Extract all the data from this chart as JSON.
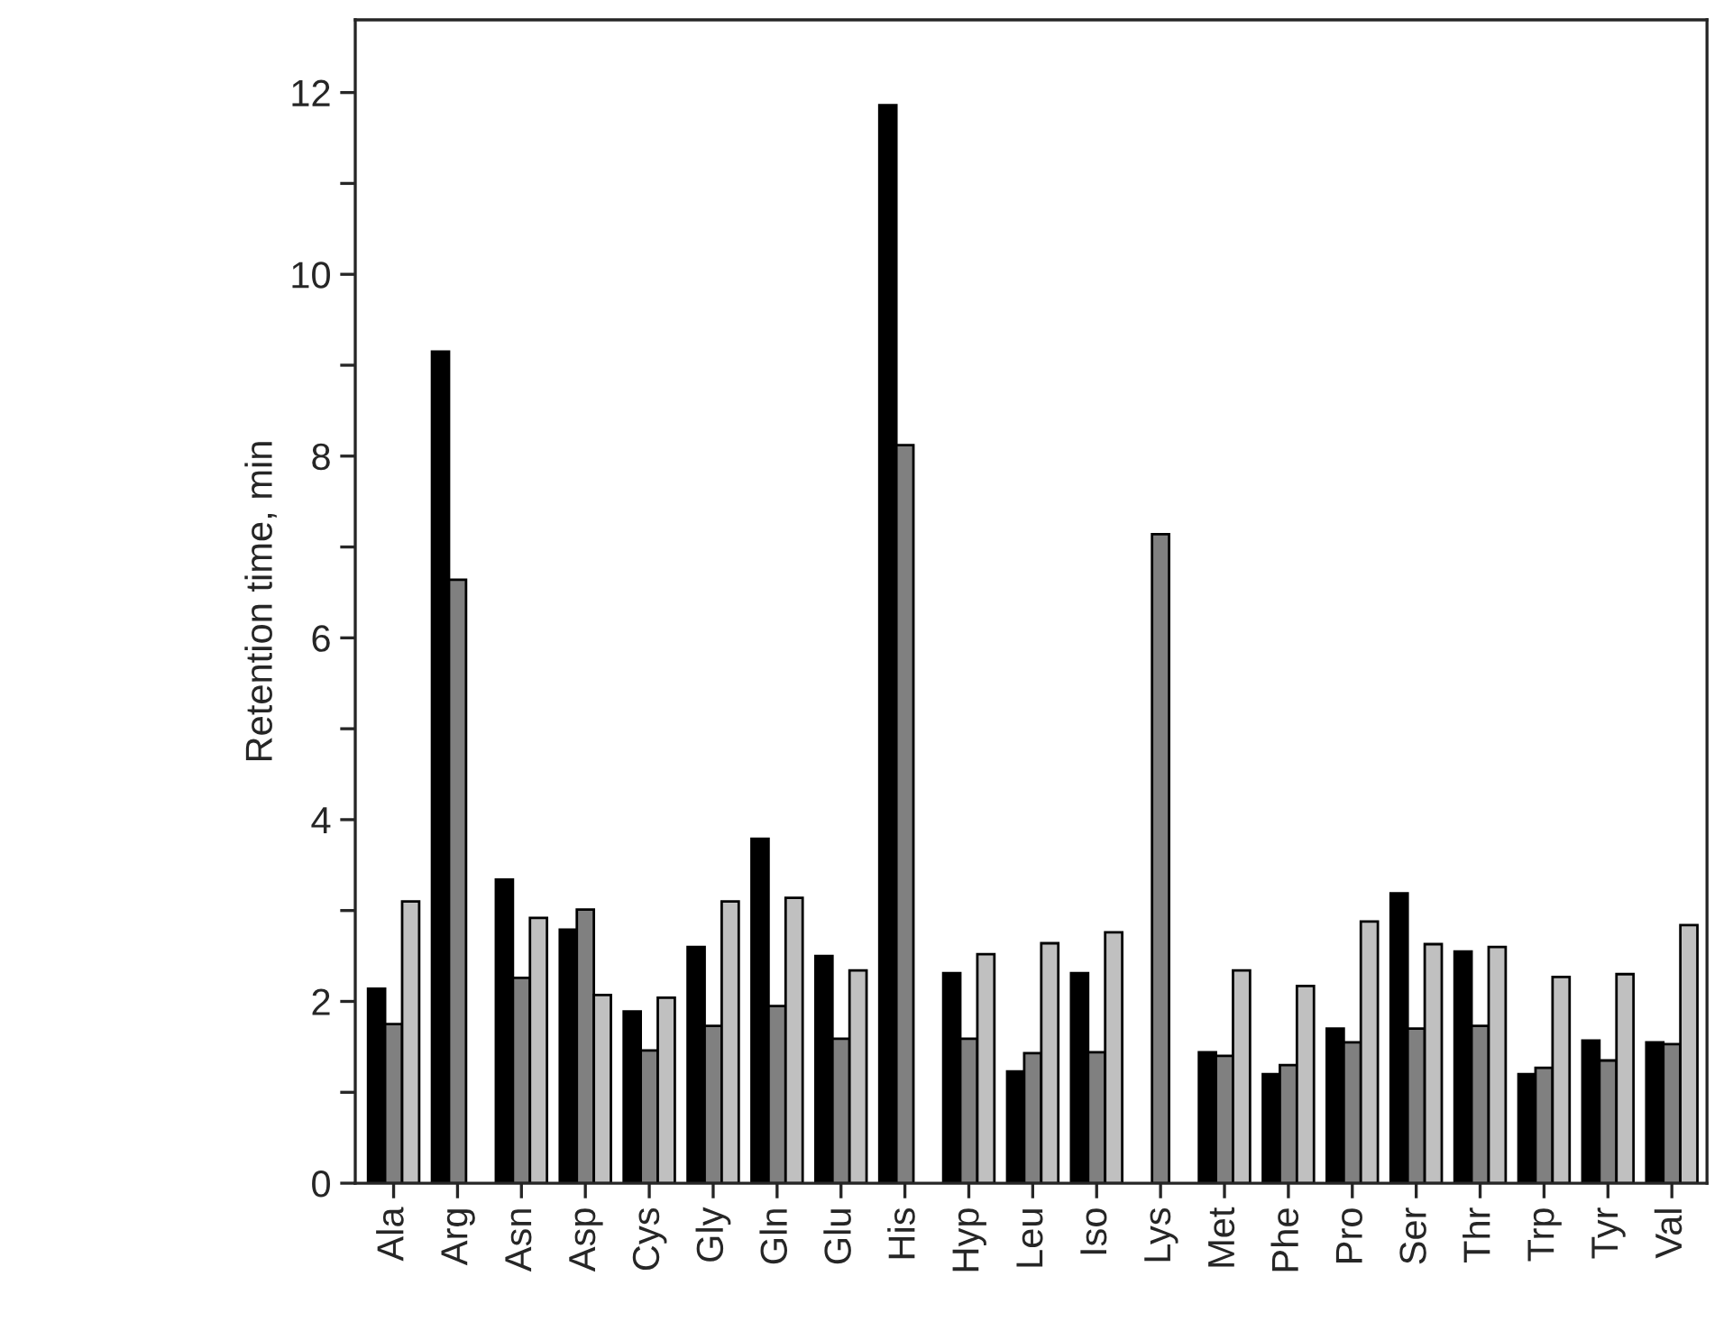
{
  "chart_data": {
    "type": "bar",
    "ylabel": "Retention time, min",
    "categories": [
      "Ala",
      "Arg",
      "Asn",
      "Asp",
      "Cys",
      "Gly",
      "Gln",
      "Glu",
      "His",
      "Hyp",
      "Leu",
      "Iso",
      "Lys",
      "Met",
      "Phe",
      "Pro",
      "Ser",
      "Thr",
      "Trp",
      "Tyr",
      "Val"
    ],
    "series": [
      {
        "color": "#000000",
        "values": [
          2.14,
          9.15,
          3.34,
          2.79,
          1.89,
          2.6,
          3.79,
          2.5,
          11.86,
          2.31,
          1.23,
          2.31,
          null,
          1.44,
          1.2,
          1.7,
          3.19,
          2.55,
          1.2,
          1.57,
          1.55
        ]
      },
      {
        "color": "#808080",
        "values": [
          1.75,
          6.64,
          2.26,
          3.01,
          1.46,
          1.73,
          1.95,
          1.59,
          8.12,
          1.59,
          1.43,
          1.44,
          7.14,
          1.4,
          1.3,
          1.55,
          1.7,
          1.73,
          1.27,
          1.35,
          1.53
        ]
      },
      {
        "color": "#c0c0c0",
        "values": [
          3.1,
          null,
          2.92,
          2.07,
          2.04,
          3.1,
          3.14,
          2.34,
          null,
          2.52,
          2.64,
          2.76,
          null,
          2.34,
          2.17,
          2.88,
          2.63,
          2.6,
          2.27,
          2.3,
          2.84
        ]
      }
    ],
    "ylim": [
      0,
      12.8
    ],
    "yticks": [
      0,
      {
        "value": 1,
        "label": null
      },
      2,
      {
        "value": 3,
        "label": null
      },
      4,
      {
        "value": 5,
        "label": null
      },
      6,
      {
        "value": 7,
        "label": null
      },
      8,
      {
        "value": 9,
        "label": null
      },
      10,
      {
        "value": 11,
        "label": null
      },
      12
    ],
    "grid": false,
    "legend": false
  }
}
